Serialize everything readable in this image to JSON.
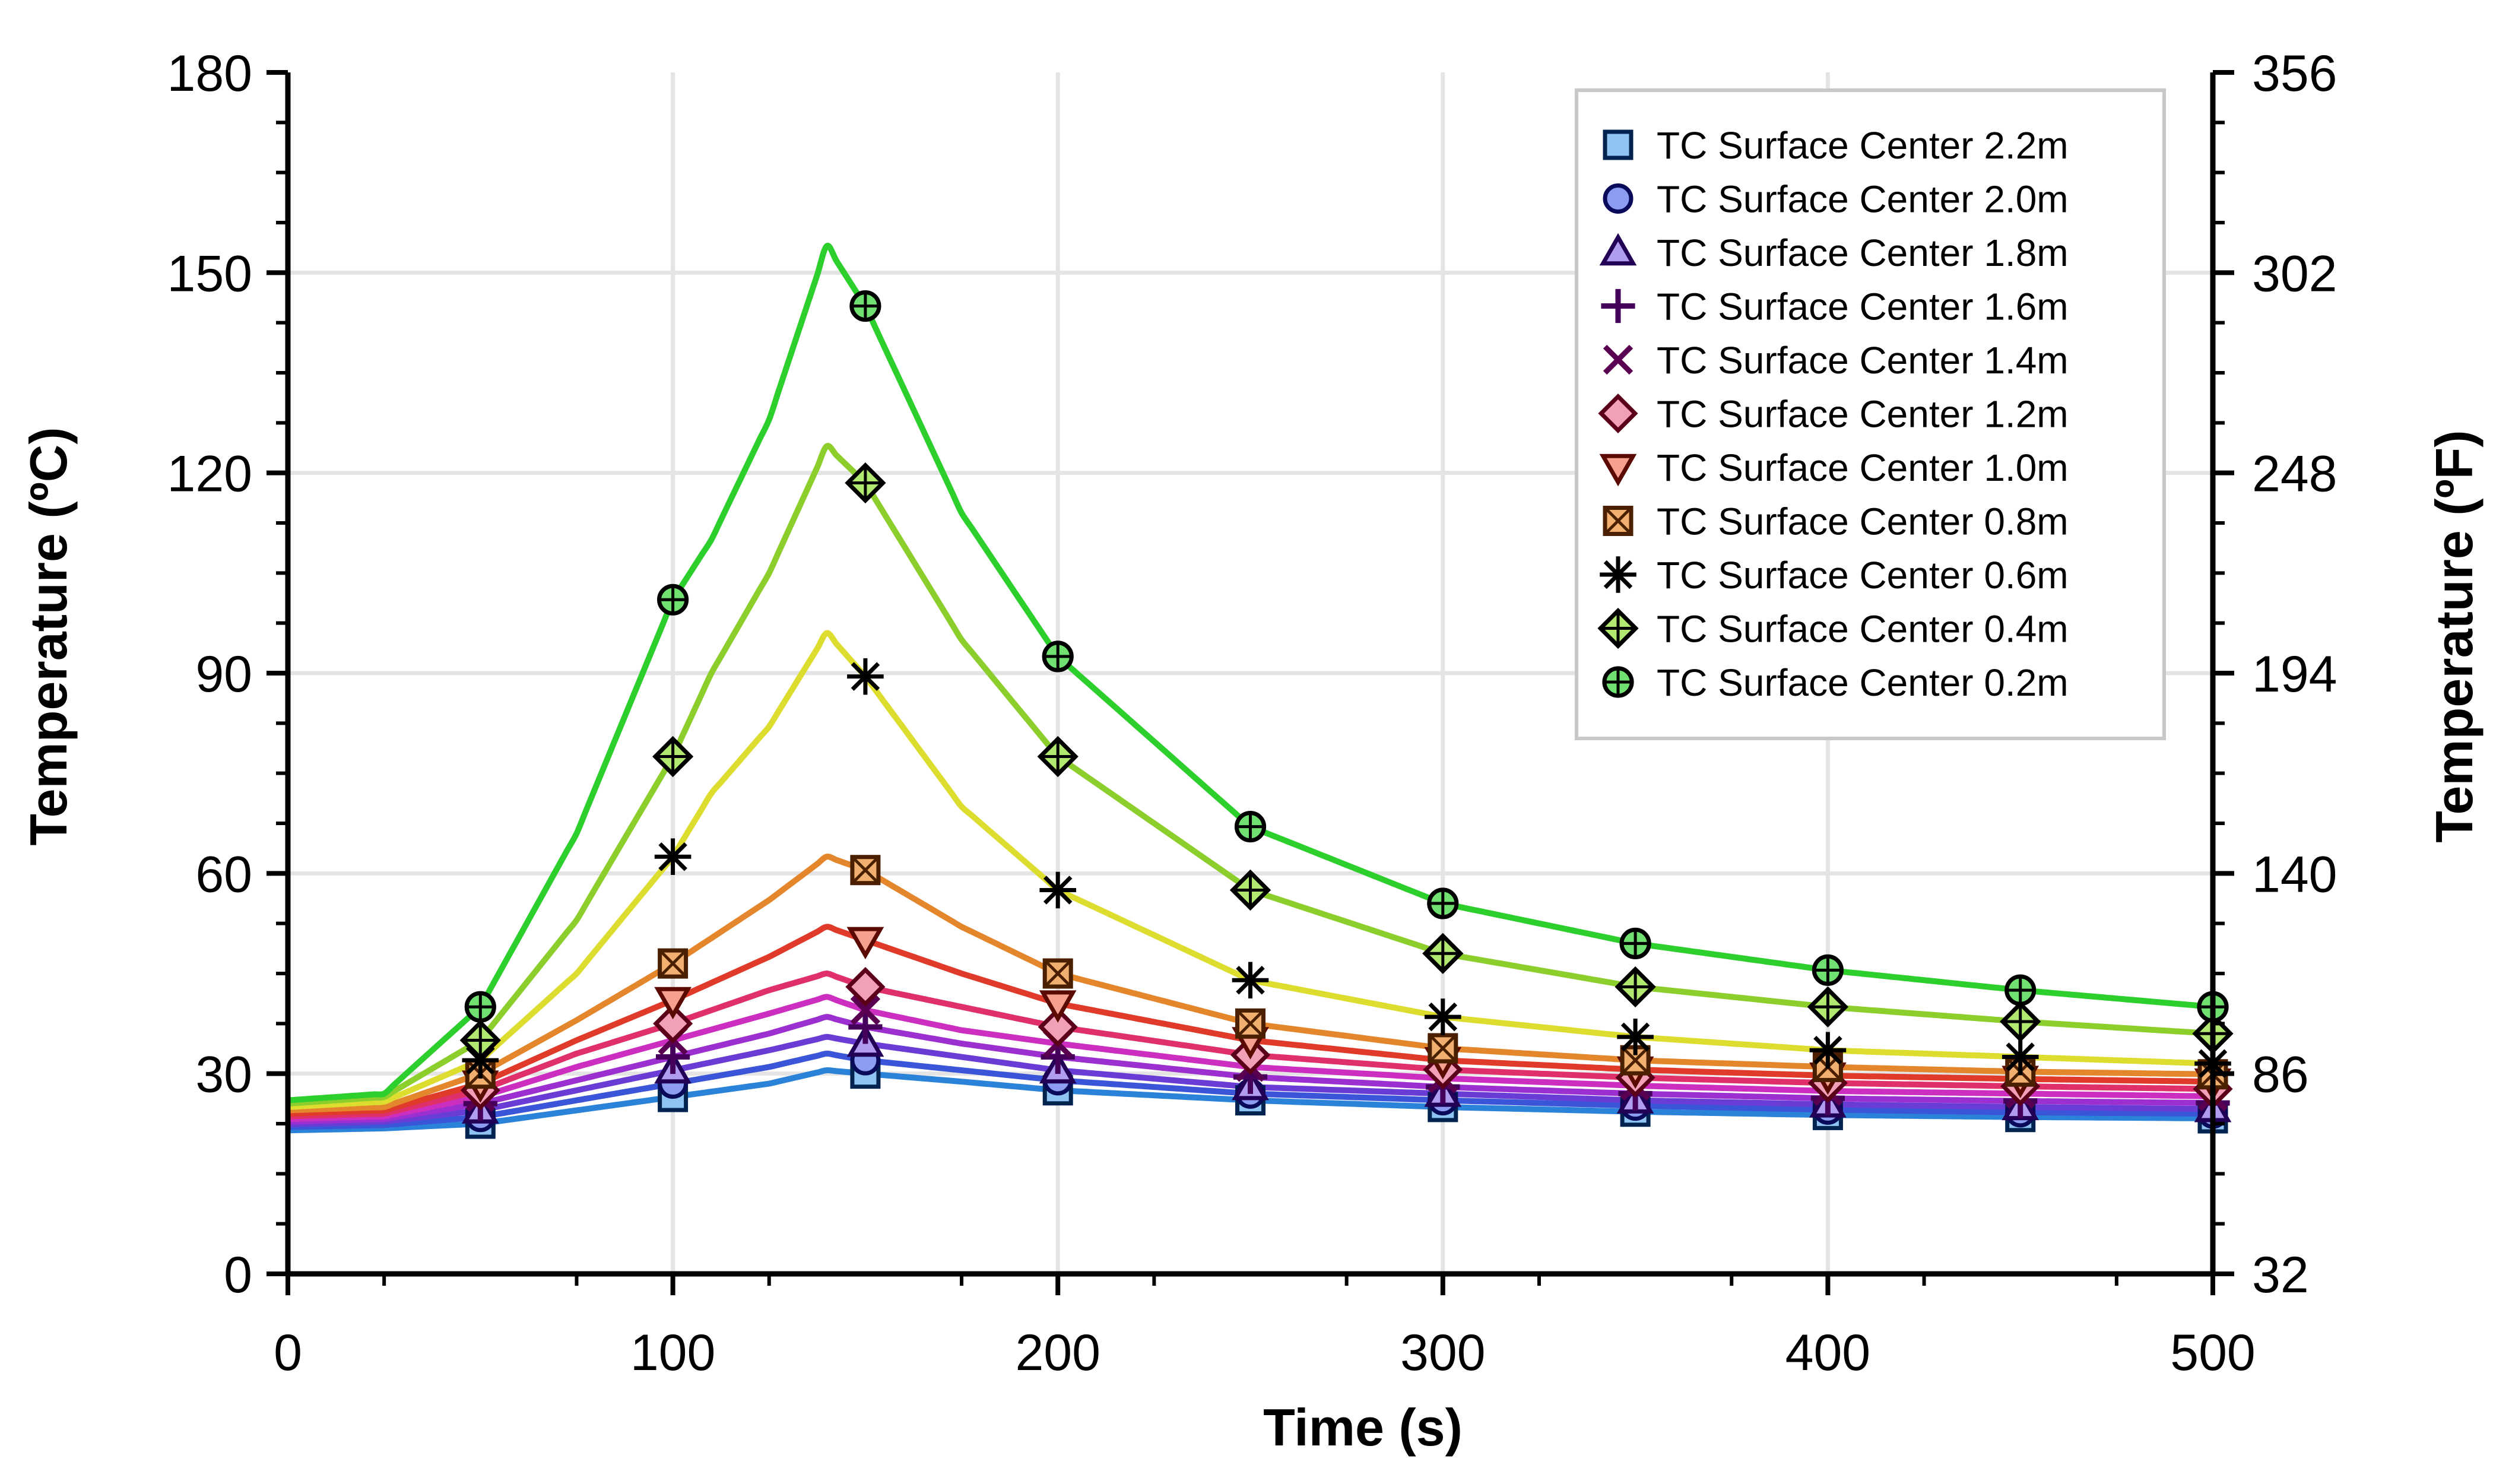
{
  "chart_data": {
    "type": "line",
    "title": "",
    "xlabel": "Time (s)",
    "ylabel": "Temperature (ºC)",
    "ylabel_right": "Temperature (ºF)",
    "xlim": [
      0,
      500
    ],
    "ylim": [
      0,
      180
    ],
    "x_ticks": [
      0,
      100,
      200,
      300,
      400,
      500
    ],
    "y_ticks": [
      0,
      30,
      60,
      90,
      120,
      150,
      180
    ],
    "y2_ticks": [
      32,
      86,
      140,
      194,
      248,
      302,
      356
    ],
    "grid": true,
    "legend_position": "top-right",
    "series": [
      {
        "name": "TC Surface Center 2.2m",
        "color": "#2b82d9",
        "marker": "square",
        "marker_fill": "#8fc3f2",
        "marker_stroke": "#00234f",
        "x": [
          0,
          25,
          50,
          75,
          100,
          125,
          140,
          150,
          175,
          200,
          250,
          300,
          350,
          400,
          450,
          500
        ],
        "y": [
          21.5,
          21.8,
          22.5,
          24.5,
          26.5,
          28.5,
          30.5,
          30,
          28.8,
          27.5,
          26,
          25,
          24.3,
          23.8,
          23.5,
          23.3
        ]
      },
      {
        "name": "TC Surface Center 2.0m",
        "color": "#3a55d8",
        "marker": "circle",
        "marker_fill": "#8c9cf0",
        "marker_stroke": "#0a0a5a",
        "x": [
          0,
          25,
          50,
          75,
          100,
          125,
          140,
          150,
          175,
          200,
          250,
          300,
          350,
          400,
          450,
          500
        ],
        "y": [
          22,
          22.3,
          23.5,
          26,
          28.5,
          31,
          33,
          32,
          30.5,
          29,
          27,
          26,
          25.2,
          24.6,
          24.2,
          24
        ]
      },
      {
        "name": "TC Surface Center 1.8m",
        "color": "#6a3cd6",
        "marker": "triangle",
        "marker_fill": "#b09cf0",
        "marker_stroke": "#220055",
        "x": [
          0,
          25,
          50,
          75,
          100,
          125,
          140,
          150,
          175,
          200,
          250,
          300,
          350,
          400,
          450,
          500
        ],
        "y": [
          22.4,
          22.8,
          24.5,
          27.5,
          30.5,
          33.5,
          35.5,
          34.5,
          32.5,
          30.5,
          28,
          27,
          26,
          25.4,
          25,
          24.7
        ]
      },
      {
        "name": "TC Surface Center 1.6m",
        "color": "#9b2fd0",
        "marker": "plus",
        "marker_fill": "#cc88ee",
        "marker_stroke": "#44005a",
        "x": [
          0,
          25,
          50,
          75,
          100,
          125,
          140,
          150,
          175,
          200,
          250,
          300,
          350,
          400,
          450,
          500
        ],
        "y": [
          22.8,
          23.2,
          25.5,
          29,
          32.5,
          36,
          38.5,
          37,
          34.5,
          32.5,
          29.5,
          28,
          27,
          26.3,
          25.9,
          25.6
        ]
      },
      {
        "name": "TC Surface Center 1.4m",
        "color": "#cc2fc0",
        "marker": "x",
        "marker_fill": "#ea88dd",
        "marker_stroke": "#5a0050",
        "x": [
          0,
          25,
          50,
          75,
          100,
          125,
          140,
          150,
          175,
          200,
          250,
          300,
          350,
          400,
          450,
          500
        ],
        "y": [
          23.2,
          23.6,
          26.5,
          31,
          35,
          39,
          41.5,
          39.5,
          36.5,
          34.5,
          31,
          29.3,
          28.2,
          27.4,
          27,
          26.6
        ]
      },
      {
        "name": "TC Surface Center 1.2m",
        "color": "#e0306a",
        "marker": "diamond",
        "marker_fill": "#f2a0b8",
        "marker_stroke": "#5a0018",
        "x": [
          0,
          25,
          50,
          75,
          100,
          125,
          140,
          150,
          175,
          200,
          250,
          300,
          350,
          400,
          450,
          500
        ],
        "y": [
          23.6,
          24,
          27.5,
          33,
          37.5,
          42.5,
          45,
          43,
          40,
          37,
          32.8,
          30.6,
          29.4,
          28.6,
          28.1,
          27.7
        ]
      },
      {
        "name": "TC Surface Center 1.0m",
        "color": "#e03a2a",
        "marker": "triangle-down",
        "marker_fill": "#f6a090",
        "marker_stroke": "#5a0a00",
        "x": [
          0,
          25,
          50,
          75,
          100,
          125,
          140,
          150,
          175,
          200,
          250,
          300,
          350,
          400,
          450,
          500
        ],
        "y": [
          24,
          24.5,
          28.5,
          35,
          41,
          47.5,
          52,
          50,
          45,
          40.5,
          35,
          32,
          30.6,
          29.7,
          29.2,
          28.8
        ]
      },
      {
        "name": "TC Surface Center 0.8m",
        "color": "#e4862c",
        "marker": "boxx",
        "marker_fill": "#f2b070",
        "marker_stroke": "#4a2000",
        "x": [
          0,
          25,
          50,
          75,
          100,
          125,
          140,
          150,
          175,
          200,
          250,
          300,
          350,
          400,
          450,
          500
        ],
        "y": [
          24.5,
          25,
          30,
          38,
          46.5,
          56,
          62.5,
          60.5,
          52,
          45,
          37.5,
          33.8,
          32,
          31,
          30.3,
          29.9
        ]
      },
      {
        "name": "TC Surface Center 0.6m",
        "color": "#dddd30",
        "marker": "asterisk",
        "marker_fill": "#f0f060",
        "marker_stroke": "#000000",
        "x": [
          0,
          25,
          50,
          75,
          100,
          110,
          125,
          140,
          150,
          175,
          200,
          250,
          300,
          350,
          400,
          450,
          500
        ],
        "y": [
          25,
          25.8,
          32,
          45,
          62.5,
          72,
          82,
          96,
          89.5,
          70,
          57.5,
          44,
          38.5,
          35.5,
          33.5,
          32.5,
          31.5
        ]
      },
      {
        "name": "TC Surface Center 0.4m",
        "color": "#8ccf2c",
        "marker": "diamondplus",
        "marker_fill": "#b0e870",
        "marker_stroke": "#000000",
        "x": [
          0,
          25,
          50,
          75,
          100,
          110,
          125,
          140,
          150,
          175,
          200,
          250,
          300,
          350,
          400,
          450,
          500
        ],
        "y": [
          25.5,
          26.5,
          35,
          53,
          77.5,
          90,
          105,
          124,
          118.5,
          95,
          77.5,
          57.5,
          48,
          43,
          40,
          37.8,
          36
        ]
      },
      {
        "name": "TC Surface Center 0.2m",
        "color": "#2ccf2c",
        "marker": "circleplus",
        "marker_fill": "#70e070",
        "marker_stroke": "#000000",
        "x": [
          0,
          25,
          50,
          75,
          100,
          110,
          125,
          140,
          150,
          175,
          200,
          250,
          300,
          350,
          400,
          450,
          500
        ],
        "y": [
          26,
          27,
          40,
          66,
          101,
          110,
          128,
          154,
          145,
          114,
          92.5,
          67,
          55.5,
          49.5,
          45.5,
          42.5,
          40
        ]
      }
    ]
  }
}
